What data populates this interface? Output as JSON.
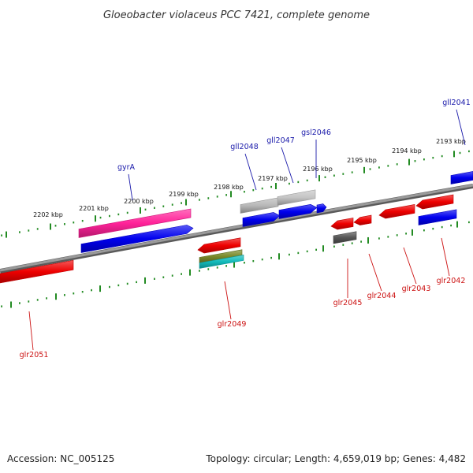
{
  "title": "Gloeobacter violaceus PCC 7421, complete genome",
  "footer": {
    "accession": "Accession: NC_005125",
    "stats": "Topology: circular; Length: 4,659,019 bp; Genes: 4,482"
  },
  "colors": {
    "backbone": "#8a8a8a",
    "tick": "#228b22",
    "forward_label": "#1a1aaa",
    "reverse_label": "#cc1111"
  },
  "scale_labels": [
    "2202 kbp",
    "2201 kbp",
    "2200 kbp",
    "2199 kbp",
    "2198 kbp",
    "2197 kbp",
    "2196 kbp",
    "2195 kbp",
    "2194 kbp",
    "2193 kbp"
  ],
  "forward_gene_labels": [
    "gyrA",
    "gll2048",
    "gll2047",
    "gsl2046",
    "gll2041"
  ],
  "reverse_gene_labels": [
    "glr2051",
    "glr2049",
    "glr2045",
    "glr2044",
    "glr2043",
    "glr2042"
  ],
  "features": [
    {
      "name": "gyrA-feature",
      "color": "#ff2299",
      "shape": "bar"
    },
    {
      "name": "gyrA-cds",
      "color": "#0000ee",
      "shape": "arrow-right"
    },
    {
      "name": "gll2048-feature",
      "color": "#b8b8b8",
      "shape": "bar"
    },
    {
      "name": "gll2047-feature",
      "color": "#c4c4c4",
      "shape": "bar"
    },
    {
      "name": "gll2048-cds",
      "color": "#0000ee",
      "shape": "arrow-right"
    },
    {
      "name": "gll2047-cds",
      "color": "#0000ee",
      "shape": "arrow-right"
    },
    {
      "name": "gsl2046-cds",
      "color": "#0000ee",
      "shape": "arrow-right"
    },
    {
      "name": "gll2041-cds",
      "color": "#0000ee",
      "shape": "bar"
    },
    {
      "name": "glr2049-cds",
      "color": "#ee0000",
      "shape": "arrow-left"
    },
    {
      "name": "glr2049-feature-olive",
      "color": "#7a8a2a",
      "shape": "bar"
    },
    {
      "name": "glr2049-feature-cyan",
      "color": "#11bbbb",
      "shape": "bar"
    },
    {
      "name": "glr2051-cds",
      "color": "#ee0000",
      "shape": "bar"
    },
    {
      "name": "glr2045-cds",
      "color": "#ee0000",
      "shape": "arrow-left"
    },
    {
      "name": "glr2045-feature",
      "color": "#555555",
      "shape": "bar"
    },
    {
      "name": "glr2044-cds",
      "color": "#ee0000",
      "shape": "arrow-left"
    },
    {
      "name": "glr2043-cds",
      "color": "#ee0000",
      "shape": "arrow-left"
    },
    {
      "name": "glr2042-cds",
      "color": "#ee0000",
      "shape": "arrow-left"
    },
    {
      "name": "glr2042-feature",
      "color": "#0000ee",
      "shape": "bar"
    }
  ]
}
